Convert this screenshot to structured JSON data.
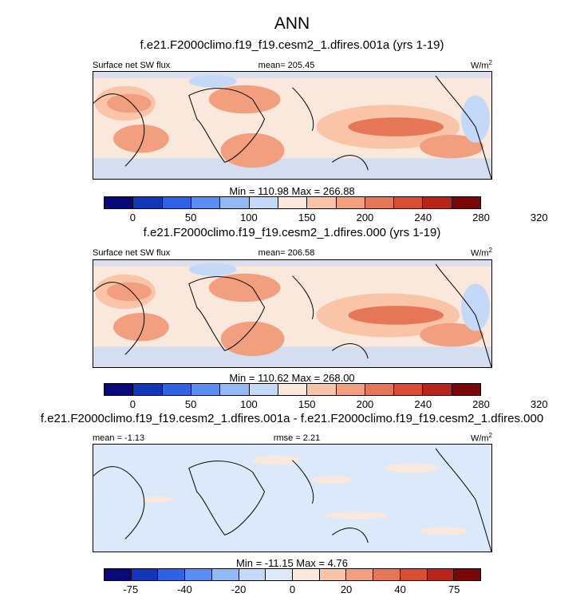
{
  "title": "ANN",
  "panels": [
    {
      "case": "f.e21.F2000climo.f19_f19.cesm2_1.dfires.001a (yrs 1-19)",
      "left_label": "Surface net SW flux",
      "center_label": "mean= 205.45",
      "units": "W/m",
      "units_sup": "2",
      "minmax": "Min = 110.98 Max = 266.88",
      "colorbar": {
        "colors": [
          "#08087a",
          "#1236b8",
          "#2f63e6",
          "#5a8ef2",
          "#93b8f6",
          "#c4d8f8",
          "#fbe8dc",
          "#f9c4a8",
          "#f19f7e",
          "#e67756",
          "#d94d32",
          "#b8231a",
          "#7a0608"
        ],
        "tick_labels": [
          "0",
          "50",
          "100",
          "150",
          "200",
          "240",
          "280",
          "320"
        ]
      }
    },
    {
      "case": "f.e21.F2000climo.f19_f19.cesm2_1.dfires.000 (yrs 1-19)",
      "left_label": "Surface net SW flux",
      "center_label": "mean= 206.58",
      "units": "W/m",
      "units_sup": "2",
      "minmax": "Min = 110.62 Max = 268.00",
      "colorbar": {
        "colors": [
          "#08087a",
          "#1236b8",
          "#2f63e6",
          "#5a8ef2",
          "#93b8f6",
          "#c4d8f8",
          "#fbe8dc",
          "#f9c4a8",
          "#f19f7e",
          "#e67756",
          "#d94d32",
          "#b8231a",
          "#7a0608"
        ],
        "tick_labels": [
          "0",
          "50",
          "100",
          "150",
          "200",
          "240",
          "280",
          "320"
        ]
      }
    },
    {
      "case": "f.e21.F2000climo.f19_f19.cesm2_1.dfires.001a - f.e21.F2000climo.f19_f19.cesm2_1.dfires.000",
      "left_label": "mean =  -1.13",
      "center_label": "rmse =  2.21",
      "units": "W/m",
      "units_sup": "2",
      "minmax": "Min = -11.15 Max =   4.76",
      "colorbar": {
        "colors": [
          "#08087a",
          "#1236b8",
          "#2f63e6",
          "#5a8ef2",
          "#93b8f6",
          "#c4d8f8",
          "#dce9fa",
          "#fbe8dc",
          "#f9c4a8",
          "#f19f7e",
          "#e67756",
          "#d94d32",
          "#b8231a",
          "#7a0608"
        ],
        "tick_labels": [
          "-75",
          "-40",
          "-20",
          "0",
          "20",
          "40",
          "75"
        ]
      }
    }
  ]
}
